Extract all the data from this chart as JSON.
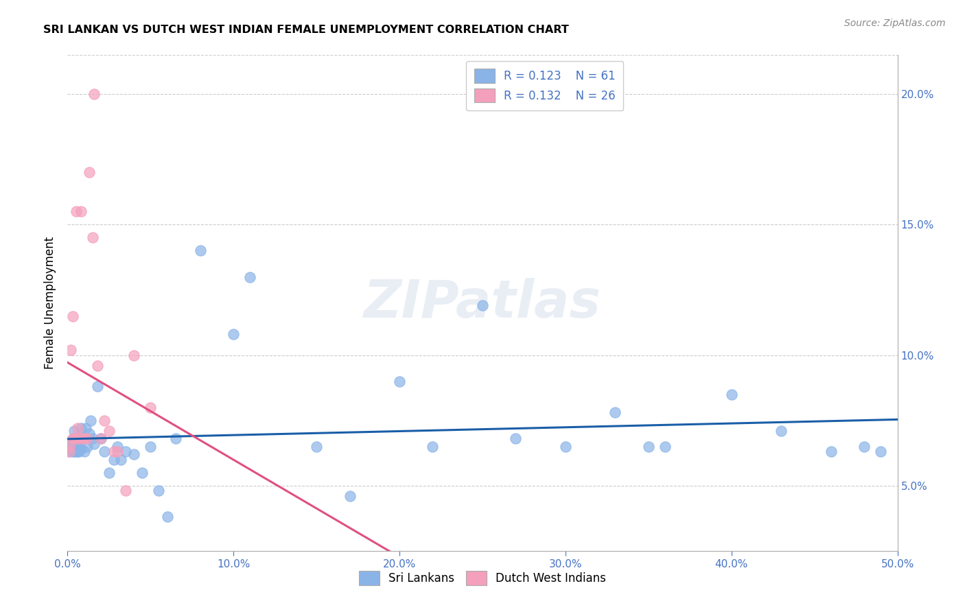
{
  "title": "SRI LANKAN VS DUTCH WEST INDIAN FEMALE UNEMPLOYMENT CORRELATION CHART",
  "source": "Source: ZipAtlas.com",
  "ylabel": "Female Unemployment",
  "xlim": [
    0.0,
    0.5
  ],
  "ylim": [
    0.025,
    0.215
  ],
  "xticks": [
    0.0,
    0.1,
    0.2,
    0.3,
    0.4,
    0.5
  ],
  "yticks_right": [
    0.05,
    0.1,
    0.15,
    0.2
  ],
  "sri_lankans_x": [
    0.001,
    0.001,
    0.002,
    0.002,
    0.003,
    0.003,
    0.003,
    0.004,
    0.004,
    0.004,
    0.005,
    0.005,
    0.005,
    0.005,
    0.006,
    0.006,
    0.006,
    0.007,
    0.007,
    0.008,
    0.008,
    0.009,
    0.01,
    0.011,
    0.012,
    0.013,
    0.014,
    0.015,
    0.016,
    0.018,
    0.02,
    0.022,
    0.025,
    0.028,
    0.03,
    0.032,
    0.035,
    0.04,
    0.045,
    0.05,
    0.055,
    0.06,
    0.065,
    0.08,
    0.1,
    0.11,
    0.15,
    0.2,
    0.25,
    0.3,
    0.33,
    0.36,
    0.4,
    0.43,
    0.46,
    0.48,
    0.49,
    0.17,
    0.22,
    0.27,
    0.35
  ],
  "sri_lankans_y": [
    0.065,
    0.063,
    0.067,
    0.064,
    0.066,
    0.065,
    0.063,
    0.068,
    0.071,
    0.063,
    0.067,
    0.064,
    0.063,
    0.065,
    0.064,
    0.066,
    0.063,
    0.065,
    0.063,
    0.064,
    0.072,
    0.068,
    0.063,
    0.072,
    0.065,
    0.07,
    0.075,
    0.068,
    0.066,
    0.088,
    0.068,
    0.063,
    0.055,
    0.06,
    0.065,
    0.06,
    0.063,
    0.062,
    0.055,
    0.065,
    0.048,
    0.038,
    0.068,
    0.14,
    0.108,
    0.13,
    0.065,
    0.09,
    0.119,
    0.065,
    0.078,
    0.065,
    0.085,
    0.071,
    0.063,
    0.065,
    0.063,
    0.046,
    0.065,
    0.068,
    0.065
  ],
  "dutch_west_x": [
    0.001,
    0.001,
    0.002,
    0.003,
    0.003,
    0.004,
    0.005,
    0.005,
    0.006,
    0.007,
    0.008,
    0.009,
    0.01,
    0.012,
    0.013,
    0.015,
    0.016,
    0.018,
    0.02,
    0.022,
    0.025,
    0.028,
    0.03,
    0.035,
    0.04,
    0.05
  ],
  "dutch_west_y": [
    0.065,
    0.063,
    0.102,
    0.068,
    0.115,
    0.068,
    0.068,
    0.155,
    0.072,
    0.068,
    0.155,
    0.068,
    0.068,
    0.068,
    0.17,
    0.145,
    0.2,
    0.096,
    0.068,
    0.075,
    0.071,
    0.063,
    0.063,
    0.048,
    0.1,
    0.08
  ],
  "sri_lankan_color": "#8AB4E8",
  "dutch_west_color": "#F4A0BC",
  "sri_lankan_line_color": "#1A5EA8",
  "dutch_west_line_color_solid": "#E05080",
  "dutch_west_line_color_dashed": "#E8A0B8",
  "legend_r_sri": "R = 0.123",
  "legend_n_sri": "N = 61",
  "legend_r_dutch": "R = 0.132",
  "legend_n_dutch": "N = 26",
  "watermark": "ZIPatlas",
  "background_color": "#FFFFFF",
  "grid_color": "#CCCCCC"
}
